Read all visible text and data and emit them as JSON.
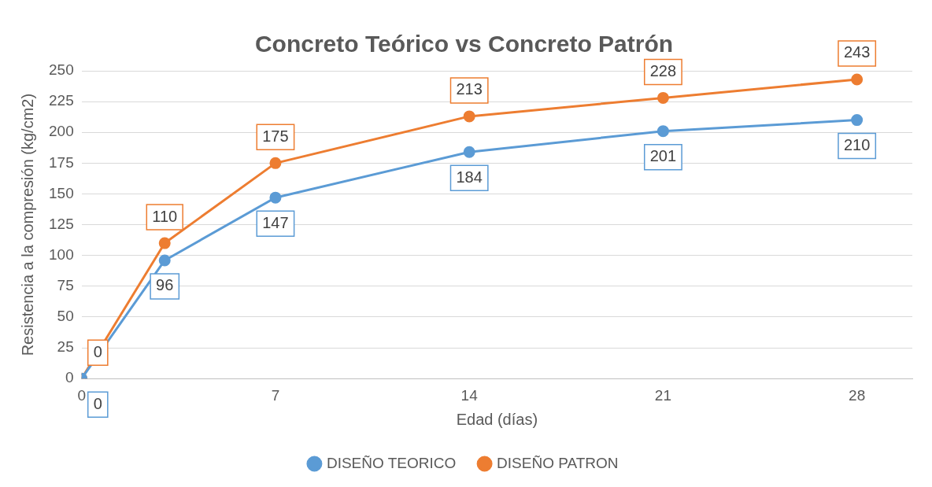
{
  "chart_data": {
    "type": "line",
    "title": "Concreto Teórico vs Concreto Patrón",
    "xlabel": "Edad (días)",
    "ylabel": "Resistencia a la compresión (kg/cm2)",
    "x": [
      0,
      3,
      7,
      14,
      21,
      28
    ],
    "series": [
      {
        "name": "DISEÑO TEORICO",
        "color": "#5b9bd5",
        "values": [
          0,
          96,
          147,
          184,
          201,
          210
        ]
      },
      {
        "name": "DISEÑO PATRON",
        "color": "#ed7d31",
        "values": [
          0,
          110,
          175,
          213,
          228,
          243
        ]
      }
    ],
    "xlim": [
      0,
      30
    ],
    "xticks": [
      0,
      7,
      14,
      21,
      28
    ],
    "ylim": [
      0,
      250
    ],
    "yticks": [
      0,
      25,
      50,
      75,
      100,
      125,
      150,
      175,
      200,
      225,
      250
    ],
    "grid": "y",
    "legend": "bottom",
    "marker": "circle",
    "data_labels": true
  }
}
